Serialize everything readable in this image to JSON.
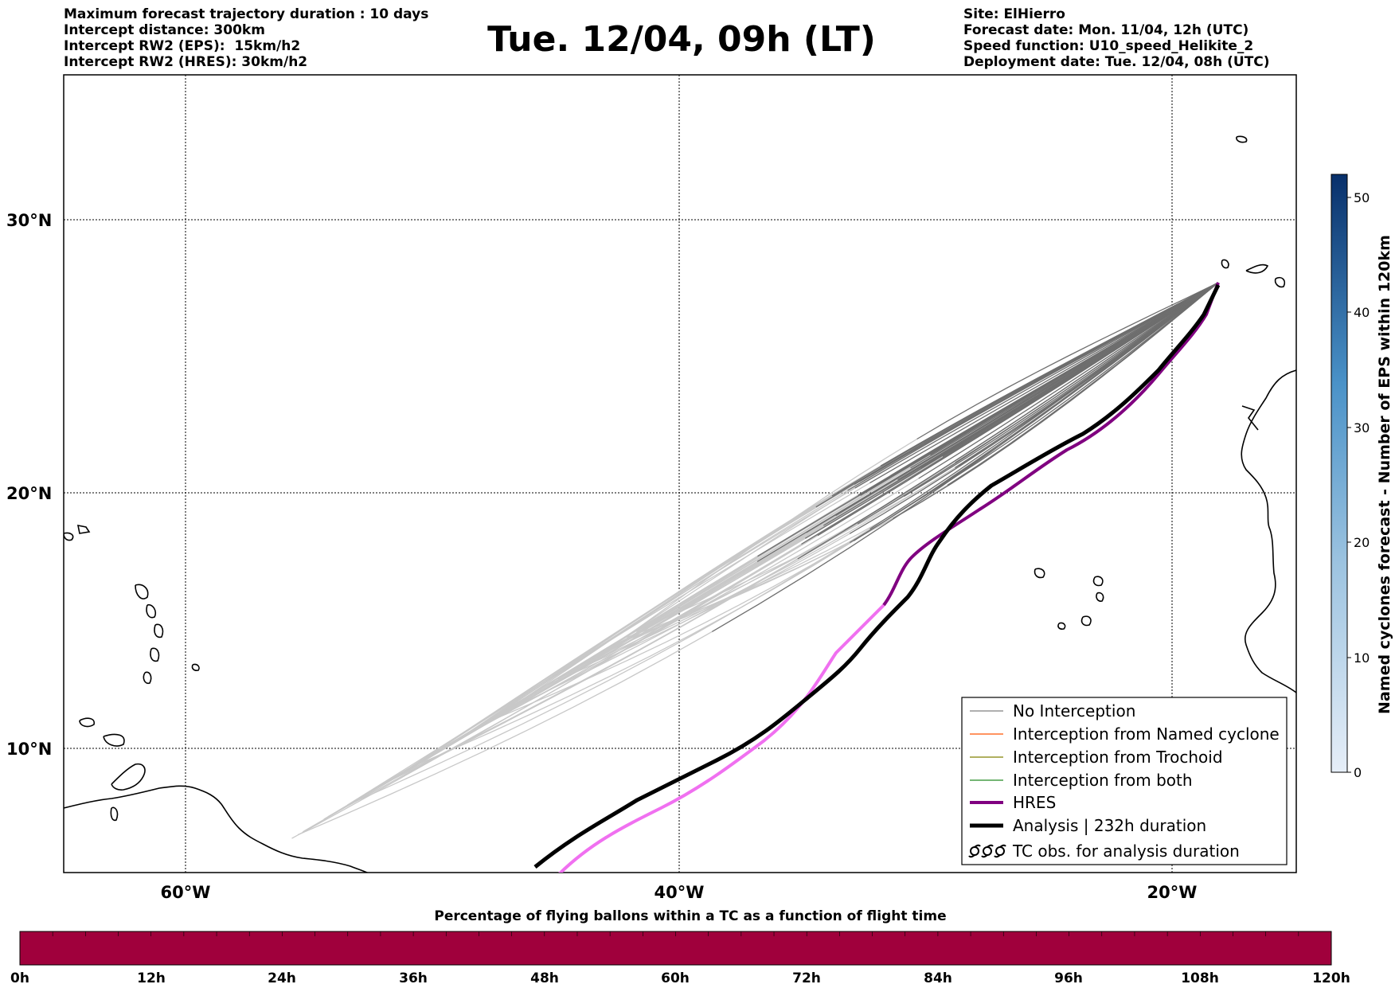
{
  "header": {
    "left": [
      "Maximum forecast trajectory duration : 10 days",
      "Intercept distance: 300km",
      "Intercept RW2 (EPS):  15km/h2",
      "Intercept RW2 (HRES): 30km/h2"
    ],
    "title": "Tue. 12/04, 09h (LT)",
    "right": [
      "Site: ElHierro",
      "Forecast date: Mon. 11/04, 12h (UTC)",
      "Speed function: U10_speed_Helikite_2",
      "Deployment date: Tue. 12/04, 08h (UTC)"
    ]
  },
  "map": {
    "lat_labels": [
      "30°N",
      "20°N",
      "10°N"
    ],
    "lon_labels": [
      "60°W",
      "40°W",
      "20°W"
    ],
    "legend": [
      {
        "label": "No Interception",
        "color": "#808080"
      },
      {
        "label": "Interception from Named cyclone",
        "color": "#ff5500"
      },
      {
        "label": "Interception from Trochoid",
        "color": "#808000"
      },
      {
        "label": "Interception from both",
        "color": "#228b22"
      },
      {
        "label": "HRES",
        "color": "#800080"
      },
      {
        "label": "Analysis | 232h duration",
        "color": "#000000"
      },
      {
        "label": "TC obs. for analysis duration",
        "color": "#000000",
        "icon": "tc-symbol-icon"
      }
    ]
  },
  "colorbar": {
    "label": "Named cyclones forecast - Number of EPS within 120km",
    "ticks": [
      "0",
      "10",
      "20",
      "30",
      "40",
      "50"
    ]
  },
  "timebar": {
    "title": "Percentage of flying ballons within a TC as a function of flight time",
    "ticks": [
      "0h",
      "12h",
      "24h",
      "36h",
      "48h",
      "60h",
      "72h",
      "84h",
      "96h",
      "108h",
      "120h"
    ],
    "color": "#a0003c"
  }
}
